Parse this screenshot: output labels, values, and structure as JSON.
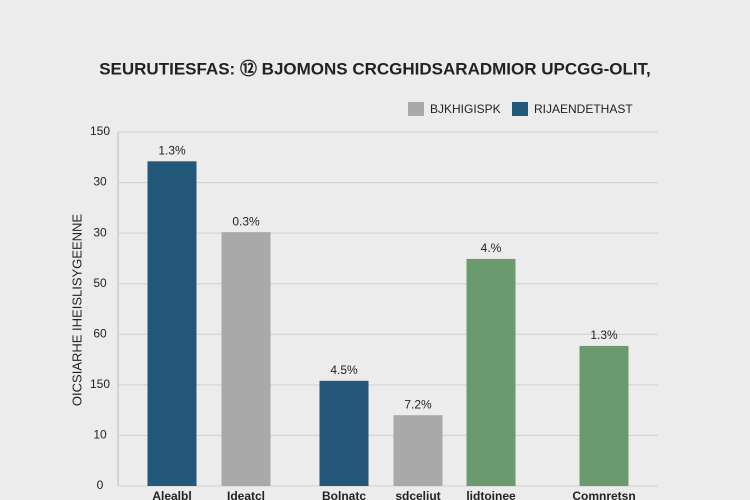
{
  "chart_data": {
    "type": "bar",
    "title": "SEURUTIESFAS: ⑫ BJOMONS CRCGHIDSARADMIOR UPCGG-OLIT,",
    "y_label": "OICSIARHE IHEISLISYGEENNE",
    "legend": [
      {
        "name": "BJKHIGISPK",
        "color": "#a9a9a9"
      },
      {
        "name": "RIJAENDETHAST",
        "color": "#23587a"
      }
    ],
    "legend_position": "top-right",
    "categories": [
      "Alealbl",
      "Ideatcl",
      "Bolnatc",
      "sdceliut",
      "lidtoinee",
      "Comnretsn"
    ],
    "values": [
      64.2,
      50.2,
      20.8,
      14,
      44.9,
      27.7
    ],
    "colors": [
      "#23587a",
      "#a9a9a9",
      "#23587a",
      "#a9a9a9",
      "#6b9a6e",
      "#6b9a6e"
    ],
    "annotations": [
      "1.3%",
      "0.3%",
      "4.5%",
      "7.2%",
      "4.%",
      "1.3%"
    ],
    "ylim": [
      0,
      70
    ],
    "yticks": [
      0,
      10,
      {
        "value": 20,
        "label": "150"
      },
      {
        "value": 30,
        "label": "60"
      },
      {
        "value": 40,
        "label": "50"
      },
      {
        "value": 50,
        "label": "30"
      },
      {
        "value": 60,
        "label": "30"
      },
      {
        "value": 70,
        "label": "150"
      }
    ],
    "grid": true
  }
}
